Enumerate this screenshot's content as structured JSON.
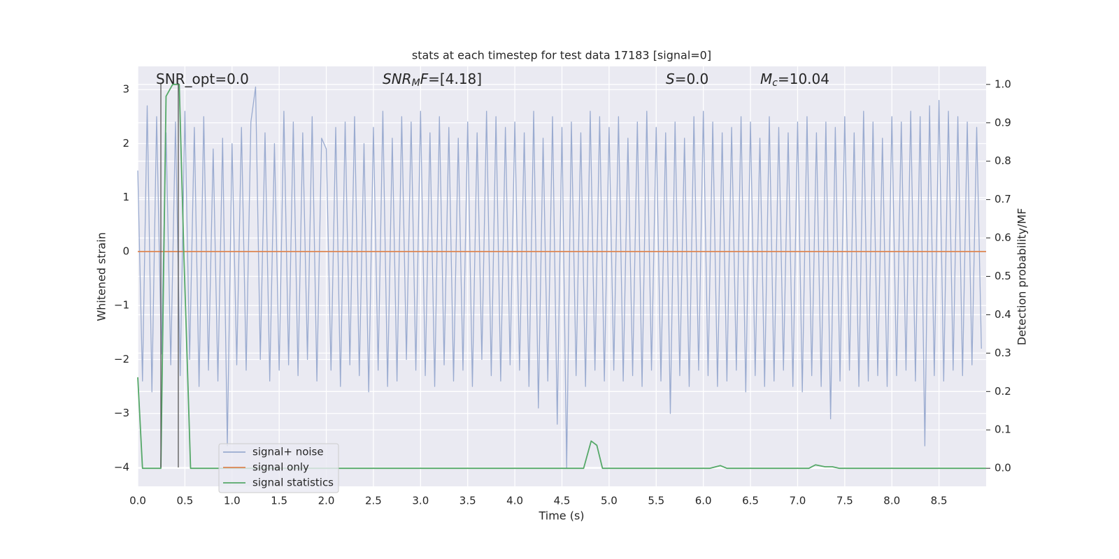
{
  "chart_data": {
    "type": "line",
    "title": "stats at each timestep for test data 17183 [signal=0]",
    "xlabel": "Time (s)",
    "ylabel": "Whitened strain",
    "y2label": "Detection probability/MF",
    "xlim": [
      0,
      9.0
    ],
    "ylim": [
      -4.35,
      3.43
    ],
    "y2lim": [
      -0.047,
      1.047
    ],
    "xticks": [
      {
        "value": 0,
        "label": "0.0"
      },
      0.5,
      {
        "value": 1,
        "label": "1.0"
      },
      1.5,
      {
        "value": 2,
        "label": "2.0"
      },
      2.5,
      {
        "value": 3,
        "label": "3.0"
      },
      3.5,
      {
        "value": 4,
        "label": "4.0"
      },
      4.5,
      {
        "value": 5,
        "label": "5.0"
      },
      5.5,
      {
        "value": 6,
        "label": "6.0"
      },
      6.5,
      {
        "value": 7,
        "label": "7.0"
      },
      7.5,
      {
        "value": 8,
        "label": "8.0"
      },
      8.5
    ],
    "yticks": [
      {
        "value": -4,
        "label": "−4"
      },
      {
        "value": -3,
        "label": "−3"
      },
      {
        "value": -2,
        "label": "−2"
      },
      {
        "value": -1,
        "label": "−1"
      },
      0,
      1,
      2,
      3
    ],
    "y2ticks": [
      {
        "value": 0,
        "label": "0.0"
      },
      0.1,
      0.2,
      0.3,
      0.4,
      0.5,
      0.6,
      0.7,
      0.8,
      0.9,
      {
        "value": 1,
        "label": "1.0"
      }
    ],
    "grid": true,
    "legend": "lower left",
    "annotations": [
      {
        "parts": [
          {
            "text": "SNR_opt=0.0"
          }
        ]
      },
      {
        "parts": [
          {
            "text": "SNR",
            "style": "italic"
          },
          {
            "text": "M",
            "style": "italic-sub"
          },
          {
            "text": "F",
            "style": "italic"
          },
          {
            "text": "=[4.18]"
          }
        ]
      },
      {
        "parts": [
          {
            "text": "S",
            "style": "italic"
          },
          {
            "text": "=0.0"
          }
        ]
      },
      {
        "parts": [
          {
            "text": "M",
            "style": "italic"
          },
          {
            "text": "c",
            "style": "italic-sub"
          },
          {
            "text": "=10.04"
          }
        ]
      }
    ],
    "vlines": {
      "x": [
        0.245,
        0.43
      ],
      "ymin": -4.0,
      "ymax": 3.12,
      "color": "#555555"
    },
    "series": [
      {
        "name": "signal+ noise",
        "color": "#9aabd0",
        "x": [
          0,
          0.05,
          0.1,
          0.15,
          0.2,
          0.25,
          0.3,
          0.35,
          0.4,
          0.45,
          0.5,
          0.55,
          0.6,
          0.65,
          0.7,
          0.75,
          0.8,
          0.85,
          0.9,
          0.95,
          1,
          1.05,
          1.1,
          1.15,
          1.2,
          1.25,
          1.3,
          1.35,
          1.4,
          1.45,
          1.5,
          1.55,
          1.6,
          1.65,
          1.7,
          1.75,
          1.8,
          1.85,
          1.9,
          1.95,
          2,
          2.05,
          2.1,
          2.15,
          2.2,
          2.25,
          2.3,
          2.35,
          2.4,
          2.45,
          2.5,
          2.55,
          2.6,
          2.65,
          2.7,
          2.75,
          2.8,
          2.85,
          2.9,
          2.95,
          3,
          3.05,
          3.1,
          3.15,
          3.2,
          3.25,
          3.3,
          3.35,
          3.4,
          3.45,
          3.5,
          3.55,
          3.6,
          3.65,
          3.7,
          3.75,
          3.8,
          3.85,
          3.9,
          3.95,
          4,
          4.05,
          4.1,
          4.15,
          4.2,
          4.25,
          4.3,
          4.35,
          4.4,
          4.45,
          4.5,
          4.55,
          4.6,
          4.65,
          4.7,
          4.75,
          4.8,
          4.85,
          4.9,
          4.95,
          5,
          5.05,
          5.1,
          5.15,
          5.2,
          5.25,
          5.3,
          5.35,
          5.4,
          5.45,
          5.5,
          5.55,
          5.6,
          5.65,
          5.7,
          5.75,
          5.8,
          5.85,
          5.9,
          5.95,
          6,
          6.05,
          6.1,
          6.15,
          6.2,
          6.25,
          6.3,
          6.35,
          6.4,
          6.45,
          6.5,
          6.55,
          6.6,
          6.65,
          6.7,
          6.75,
          6.8,
          6.85,
          6.9,
          6.95,
          7,
          7.05,
          7.1,
          7.15,
          7.2,
          7.25,
          7.3,
          7.35,
          7.4,
          7.45,
          7.5,
          7.55,
          7.6,
          7.65,
          7.7,
          7.75,
          7.8,
          7.85,
          7.9,
          7.95,
          8,
          8.05,
          8.1,
          8.15,
          8.2,
          8.25,
          8.3,
          8.35,
          8.4,
          8.45,
          8.5,
          8.55,
          8.6,
          8.65,
          8.7,
          8.75,
          8.8,
          8.85,
          8.9,
          8.95
        ],
        "values": [
          1.5,
          -2.4,
          2.7,
          -2.6,
          2.5,
          -1.9,
          2.2,
          -2.1,
          2.4,
          -2.3,
          2.6,
          -2.0,
          2.3,
          -2.5,
          2.5,
          -2.2,
          1.9,
          -2.4,
          2.1,
          -3.6,
          2.0,
          -2.1,
          2.3,
          -2.2,
          2.4,
          3.05,
          -2.0,
          2.2,
          -2.4,
          2.0,
          -2.2,
          2.6,
          -2.1,
          2.4,
          -2.3,
          2.2,
          -2.0,
          2.5,
          -2.4,
          2.1,
          1.9,
          -2.2,
          2.3,
          -2.5,
          2.4,
          -2.1,
          2.5,
          -2.3,
          2.0,
          -2.6,
          2.3,
          -2.2,
          2.6,
          -2.5,
          2.1,
          -2.4,
          2.5,
          -2.0,
          2.4,
          -2.2,
          2.6,
          -2.3,
          2.2,
          -2.5,
          2.5,
          -2.1,
          2.3,
          -2.4,
          2.1,
          -2.2,
          2.4,
          -2.5,
          2.2,
          -2.0,
          2.6,
          -2.3,
          2.5,
          -2.4,
          2.3,
          -2.1,
          2.4,
          -2.2,
          2.2,
          -2.5,
          2.6,
          -2.9,
          2.1,
          -2.4,
          2.5,
          -3.2,
          2.3,
          -4.0,
          2.4,
          -2.3,
          2.2,
          -2.5,
          2.6,
          -2.2,
          2.5,
          -2.4,
          2.3,
          -2.2,
          2.5,
          -2.4,
          2.1,
          -2.3,
          2.4,
          -2.5,
          2.6,
          -2.2,
          2.3,
          -2.4,
          2.2,
          -3.0,
          2.4,
          -2.3,
          2.1,
          -2.5,
          2.5,
          -2.2,
          2.6,
          -2.3,
          2.4,
          -2.5,
          2.2,
          -2.4,
          2.3,
          -2.2,
          2.5,
          -2.6,
          2.4,
          -2.3,
          2.1,
          -2.5,
          2.5,
          -2.4,
          2.3,
          -2.2,
          2.2,
          -2.5,
          2.4,
          -2.6,
          2.5,
          -2.3,
          2.2,
          -2.5,
          2.4,
          -3.1,
          2.3,
          -2.4,
          2.5,
          -2.2,
          2.2,
          -2.5,
          2.6,
          -2.4,
          2.4,
          -2.3,
          2.1,
          -2.5,
          2.5,
          -2.3,
          2.4,
          -2.2,
          2.6,
          -2.4,
          2.5,
          -3.6,
          2.7,
          -2.3,
          2.8,
          -2.4,
          2.6,
          -2.2,
          2.5,
          -2.3,
          2.4,
          -2.1,
          2.3,
          -1.8
        ]
      },
      {
        "name": "signal only",
        "color": "#dd8452",
        "x": [
          0,
          9.0
        ],
        "values": [
          0,
          0
        ]
      },
      {
        "name": "signal statistics",
        "color": "#55a868",
        "axis": "y2",
        "x": [
          0,
          0.05,
          0.245,
          0.3,
          0.37,
          0.44,
          0.49,
          0.56,
          4.73,
          4.81,
          4.87,
          4.93,
          6.07,
          6.18,
          6.25,
          7.12,
          7.19,
          7.29,
          7.37,
          7.44,
          9.0
        ],
        "values": [
          0.237,
          0,
          0,
          0.969,
          1.0,
          1.0,
          0.55,
          0,
          0,
          0.071,
          0.06,
          0,
          0,
          0.007,
          0,
          0,
          0.009,
          0.004,
          0.004,
          0,
          0
        ]
      }
    ]
  }
}
